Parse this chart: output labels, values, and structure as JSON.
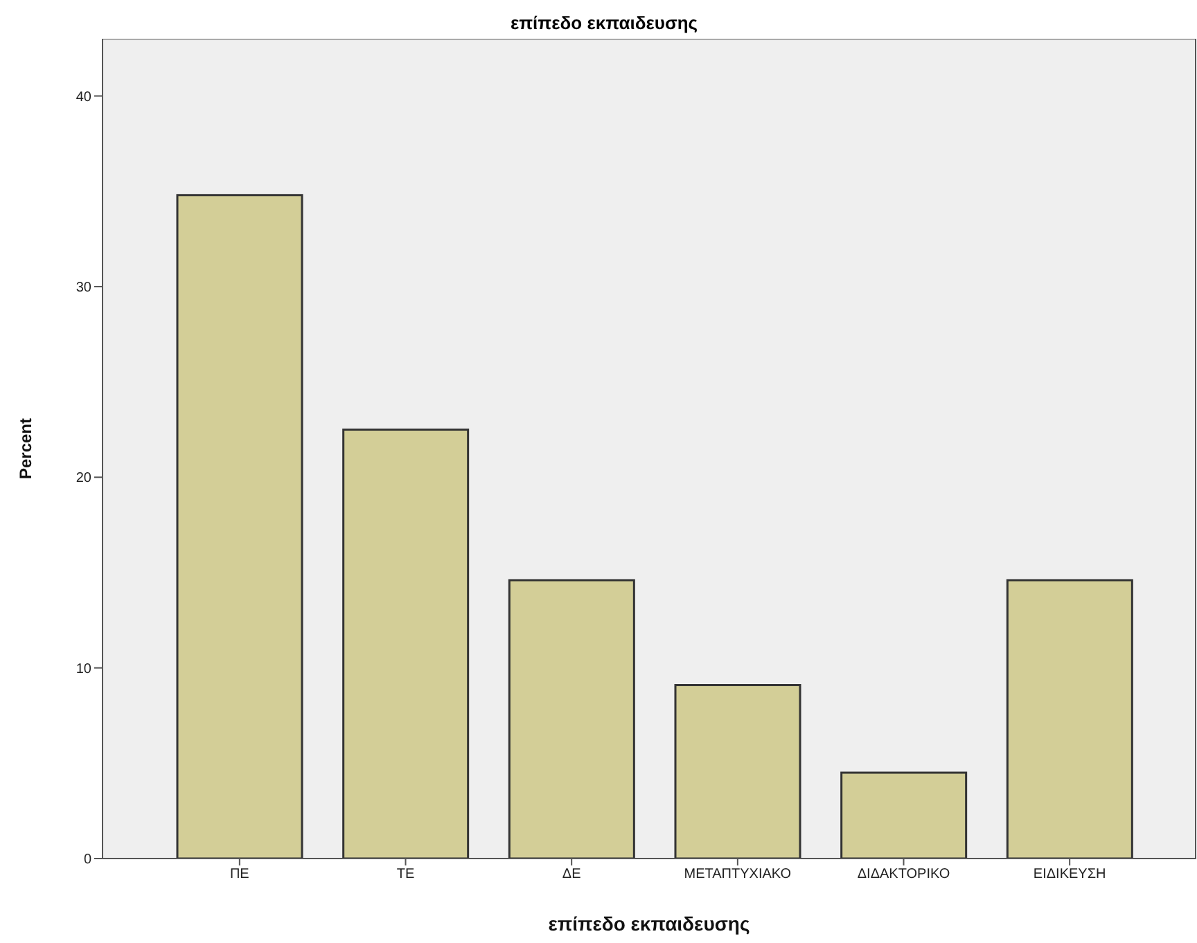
{
  "chart_data": {
    "type": "bar",
    "title": "επίπεδο εκπαιδευσης",
    "xlabel": "επίπεδο εκπαιδευσης",
    "ylabel": "Percent",
    "categories": [
      "ΠΕ",
      "ΤΕ",
      "ΔΕ",
      "ΜΕΤΑΠΤΥΧΙΑΚΟ",
      "ΔΙΔΑΚΤΟΡΙΚΟ",
      "ΕΙΔΙΚΕΥΣΗ"
    ],
    "values": [
      34.8,
      22.5,
      14.6,
      9.1,
      4.5,
      14.6
    ],
    "color": "#d3ce97",
    "ylim": [
      0,
      43
    ],
    "yticks": [
      0,
      10,
      20,
      30,
      40
    ]
  }
}
